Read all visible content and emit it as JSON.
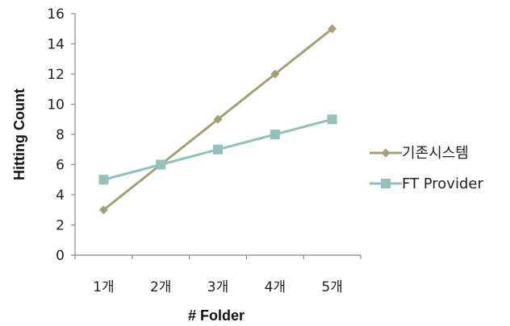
{
  "chart_data": {
    "type": "line",
    "categories": [
      "1개",
      "2개",
      "3개",
      "4개",
      "5개"
    ],
    "series": [
      {
        "name": "기존시스템",
        "values": [
          3,
          6,
          9,
          12,
          15
        ],
        "color": "#A69F74",
        "marker": "diamond"
      },
      {
        "name": "FT Provider",
        "values": [
          5,
          6,
          7,
          8,
          9
        ],
        "color": "#93C0BA",
        "marker": "square"
      }
    ],
    "xlabel": "# Folder",
    "ylabel": "Hitting Count",
    "ylim": [
      0,
      16
    ],
    "yticks": [
      0,
      2,
      4,
      6,
      8,
      10,
      12,
      14,
      16
    ],
    "grid": false,
    "legend_position": "right"
  }
}
